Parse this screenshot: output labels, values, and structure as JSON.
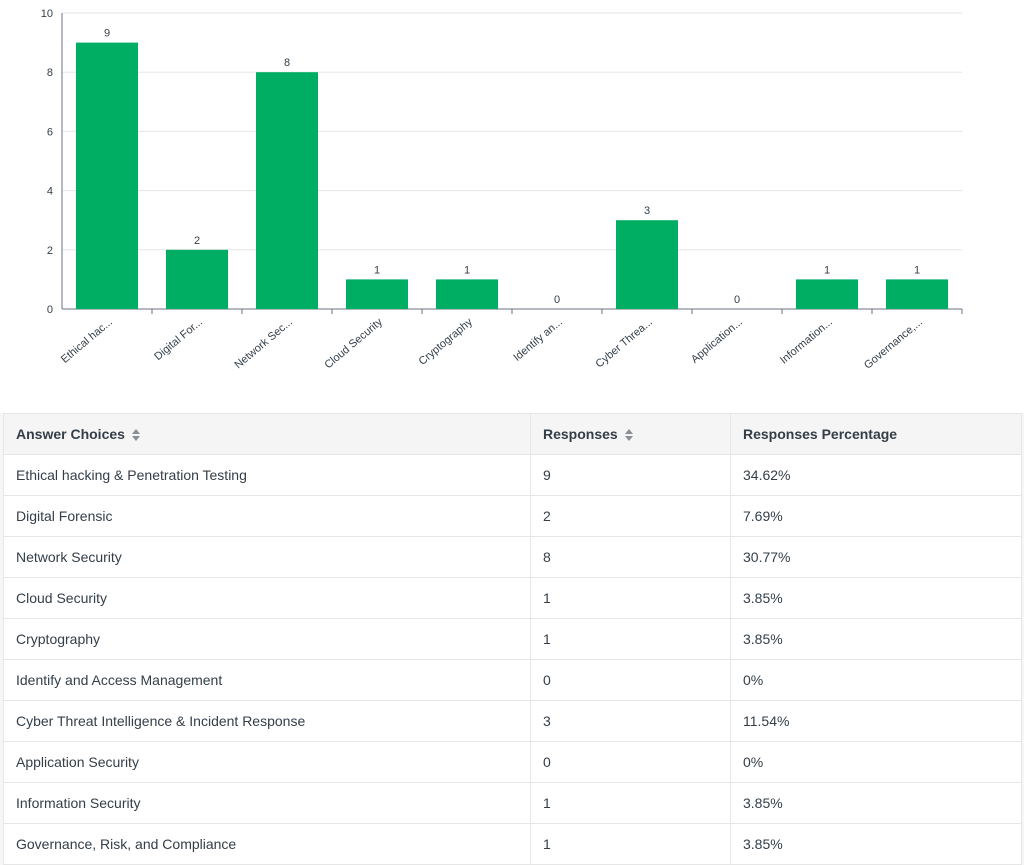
{
  "chart_data": {
    "type": "bar",
    "categories": [
      "Ethical hac...",
      "Digital For...",
      "Network Sec...",
      "Cloud Security",
      "Cryptography",
      "Identify an...",
      "Cyber Threa...",
      "Application...",
      "Information...",
      "Governance,..."
    ],
    "values": [
      9,
      2,
      8,
      1,
      1,
      0,
      3,
      0,
      1,
      1
    ],
    "ylim": [
      0,
      10
    ],
    "yticks": [
      0,
      2,
      4,
      6,
      8,
      10
    ],
    "title": "",
    "xlabel": "",
    "ylabel": "",
    "bar_color": "#00ae63",
    "grid": true
  },
  "table": {
    "headers": {
      "choice": "Answer Choices",
      "responses": "Responses",
      "percentage": "Responses Percentage"
    },
    "rows": [
      {
        "choice": "Ethical hacking & Penetration Testing",
        "responses": "9",
        "percentage": "34.62%"
      },
      {
        "choice": "Digital Forensic",
        "responses": "2",
        "percentage": "7.69%"
      },
      {
        "choice": "Network Security",
        "responses": "8",
        "percentage": "30.77%"
      },
      {
        "choice": "Cloud Security",
        "responses": "1",
        "percentage": "3.85%"
      },
      {
        "choice": "Cryptography",
        "responses": "1",
        "percentage": "3.85%"
      },
      {
        "choice": "Identify and Access Management",
        "responses": "0",
        "percentage": "0%"
      },
      {
        "choice": "Cyber Threat Intelligence & Incident Response",
        "responses": "3",
        "percentage": "11.54%"
      },
      {
        "choice": "Application Security",
        "responses": "0",
        "percentage": "0%"
      },
      {
        "choice": "Information Security",
        "responses": "1",
        "percentage": "3.85%"
      },
      {
        "choice": "Governance, Risk, and Compliance",
        "responses": "1",
        "percentage": "3.85%"
      }
    ]
  },
  "colors": {
    "bar": "#00ae63",
    "grid": "#e6e6e6",
    "axis": "#6b7280",
    "text": "#333e48"
  },
  "icons": {
    "sort": "sort-icon"
  }
}
